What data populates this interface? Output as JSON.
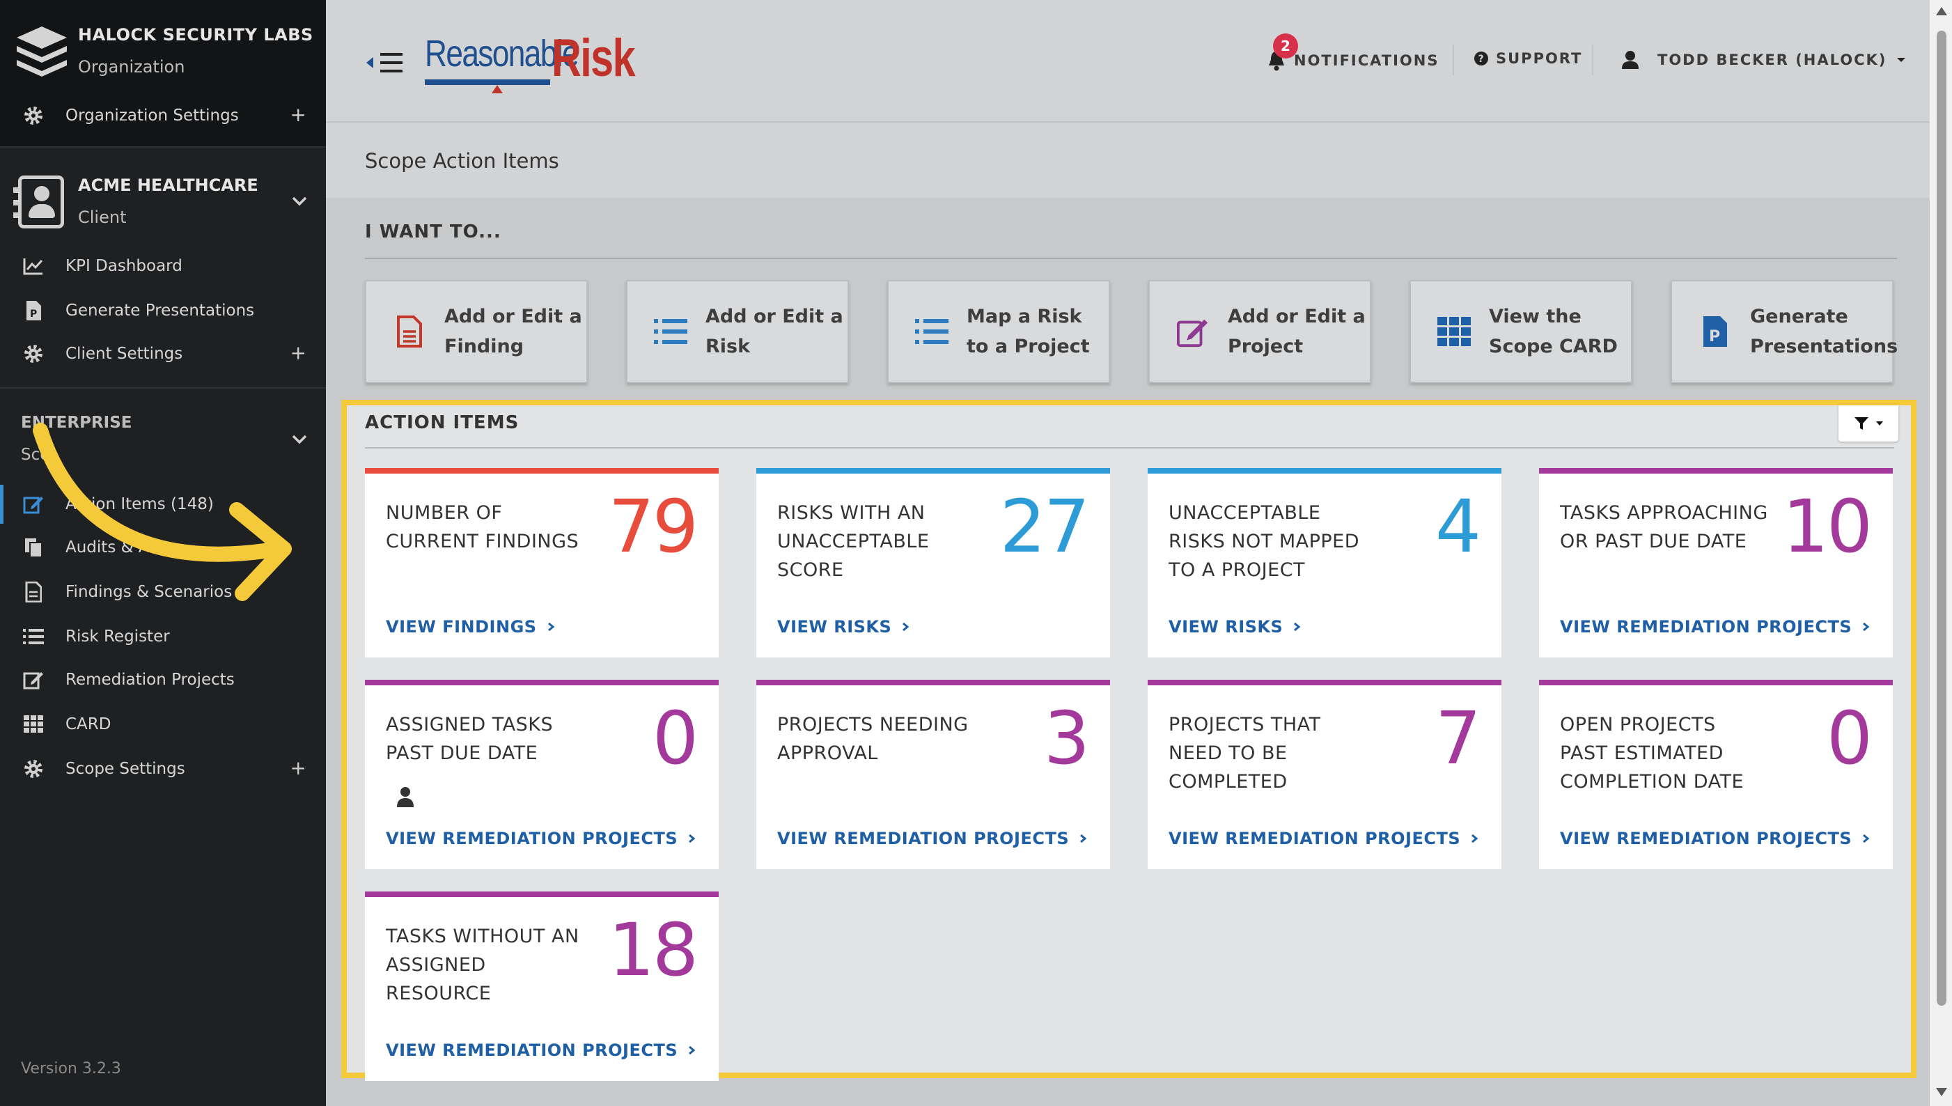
{
  "organization": {
    "name": "HALOCK SECURITY LABS",
    "type": "Organization",
    "settings_label": "Organization Settings"
  },
  "client": {
    "name": "ACME HEALTHCARE",
    "type": "Client",
    "items": [
      {
        "label": "KPI Dashboard",
        "icon": "line-chart-icon"
      },
      {
        "label": "Generate Presentations",
        "icon": "presentation-file-icon"
      },
      {
        "label": "Client Settings",
        "icon": "gear-icon"
      }
    ]
  },
  "scope": {
    "name": "ENTERPRISE",
    "type": "Sco",
    "items": [
      {
        "label": "Action Items (148)",
        "icon": "edit-icon"
      },
      {
        "label": "Audits & A",
        "icon": "copy-icon"
      },
      {
        "label": "Findings & Scenarios",
        "icon": "file-icon"
      },
      {
        "label": "Risk Register",
        "icon": "list-icon"
      },
      {
        "label": "Remediation Projects",
        "icon": "edit-icon"
      },
      {
        "label": "CARD",
        "icon": "grid-icon"
      },
      {
        "label": "Scope Settings",
        "icon": "gear-icon"
      }
    ]
  },
  "version": "Version 3.2.3",
  "header": {
    "logo_part1": "Reasonable",
    "logo_part2": "Risk",
    "notifications_label": "NOTIFICATIONS",
    "notifications_count": "2",
    "support_label": "SUPPORT",
    "user_label": "TODD BECKER (HALOCK)"
  },
  "page_title": "Scope Action Items",
  "i_want_to": {
    "heading": "I WANT TO...",
    "actions": [
      {
        "label": "Add or Edit a Finding",
        "icon": "file-text-icon",
        "color": "#c0392b"
      },
      {
        "label": "Add or Edit a Risk",
        "icon": "list-icon",
        "color": "#2b7bc0"
      },
      {
        "label": "Map a Risk to a Project",
        "icon": "list-icon",
        "color": "#2b7bc0"
      },
      {
        "label": "Add or Edit a Project",
        "icon": "edit-icon",
        "color": "#8e3a93"
      },
      {
        "label": "View the Scope CARD",
        "icon": "grid-icon",
        "color": "#1f5fa5"
      },
      {
        "label": "Generate Presentations",
        "icon": "presentation-file-icon",
        "color": "#1f5fa5"
      }
    ]
  },
  "action_items": {
    "heading": "ACTION ITEMS",
    "cards": [
      {
        "label": "Number of Current Findings",
        "value": "79",
        "link": "VIEW FINDINGS",
        "color": "#e74c3c"
      },
      {
        "label": "Risks with an Unacceptable Score",
        "value": "27",
        "link": "VIEW RISKS",
        "color": "#2d9bd6"
      },
      {
        "label": "Unacceptable Risks not Mapped to a Project",
        "value": "4",
        "link": "VIEW RISKS",
        "color": "#2d9bd6"
      },
      {
        "label": "Tasks Approaching or Past Due Date",
        "value": "10",
        "link": "VIEW REMEDIATION PROJECTS",
        "color": "#a3399b"
      },
      {
        "label": "Assigned Tasks Past Due Date",
        "value": "0",
        "link": "VIEW REMEDIATION PROJECTS",
        "color": "#a3399b",
        "user_icon": true
      },
      {
        "label": "Projects Needing Approval",
        "value": "3",
        "link": "VIEW REMEDIATION PROJECTS",
        "color": "#a3399b"
      },
      {
        "label": "Projects that Need to be Completed",
        "value": "7",
        "link": "VIEW REMEDIATION PROJECTS",
        "color": "#a3399b"
      },
      {
        "label": "Open Projects Past Estimated Completion Date",
        "value": "0",
        "link": "VIEW REMEDIATION PROJECTS",
        "color": "#a3399b"
      },
      {
        "label": "Tasks Without an Assigned Resource",
        "value": "18",
        "link": "VIEW REMEDIATION PROJECTS",
        "color": "#a3399b"
      }
    ]
  },
  "colors": {
    "highlight": "#f4c93a",
    "annotation_arrow": "#f4c93a",
    "sidebar_bg": "#1f2022",
    "link": "#1f5fa5"
  }
}
